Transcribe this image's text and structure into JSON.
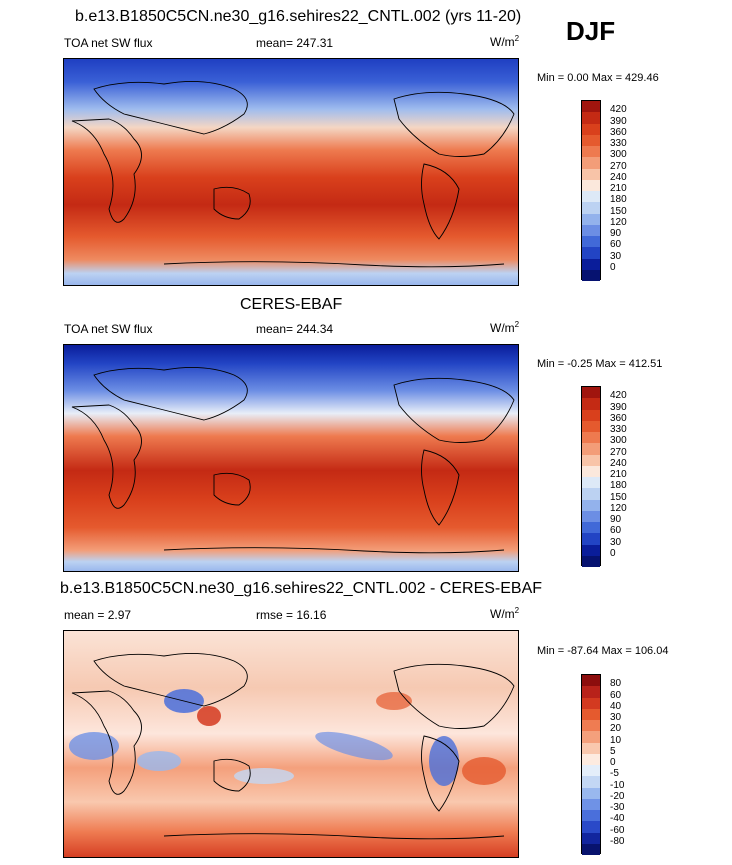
{
  "season": "DJF",
  "panels": [
    {
      "title": "b.e13.B1850C5CN.ne30_g16.sehires22_CNTL.002 (yrs 11-20)",
      "left_label": "TOA net SW flux",
      "center_label": "mean= 247.31",
      "units": "W/m",
      "units_sup": "2",
      "minmax": "Min =   0.00 Max = 429.46",
      "ticks": [
        "420",
        "390",
        "360",
        "330",
        "300",
        "270",
        "240",
        "210",
        "180",
        "150",
        "120",
        "90",
        "60",
        "30",
        "0"
      ],
      "colors": [
        "#a0150e",
        "#c42a14",
        "#d9401c",
        "#e55a2e",
        "#ee7a4f",
        "#f39d78",
        "#f8c4a8",
        "#fbe8dc",
        "#dde9f7",
        "#bcd2f2",
        "#93b2ec",
        "#6c8ee4",
        "#4169d8",
        "#2244c4",
        "#0a1d9a",
        "#061270"
      ]
    },
    {
      "title": "CERES-EBAF",
      "left_label": "TOA net SW flux",
      "center_label": "mean= 244.34",
      "units": "W/m",
      "units_sup": "2",
      "minmax": "Min =  -0.25 Max = 412.51",
      "ticks": [
        "420",
        "390",
        "360",
        "330",
        "300",
        "270",
        "240",
        "210",
        "180",
        "150",
        "120",
        "90",
        "60",
        "30",
        "0"
      ],
      "colors": [
        "#a0150e",
        "#c42a14",
        "#d9401c",
        "#e55a2e",
        "#ee7a4f",
        "#f39d78",
        "#f8c4a8",
        "#fbe8dc",
        "#dde9f7",
        "#bcd2f2",
        "#93b2ec",
        "#6c8ee4",
        "#4169d8",
        "#2244c4",
        "#0a1d9a",
        "#061270"
      ]
    },
    {
      "title": "b.e13.B1850C5CN.ne30_g16.sehires22_CNTL.002 - CERES-EBAF",
      "left_label": "mean =   2.97",
      "center_label": "rmse =  16.16",
      "units": "W/m",
      "units_sup": "2",
      "minmax": "Min = -87.64 Max = 106.04",
      "ticks": [
        "80",
        "60",
        "40",
        "30",
        "20",
        "10",
        "5",
        "0",
        "-5",
        "-10",
        "-20",
        "-30",
        "-40",
        "-60",
        "-80"
      ],
      "colors": [
        "#8c0d0d",
        "#b8221a",
        "#d33a20",
        "#e55a2e",
        "#ef7c52",
        "#f4a07c",
        "#f9c8ae",
        "#fdebe0",
        "#e4eefa",
        "#c3d7f4",
        "#99b8ee",
        "#6f92e6",
        "#4a6fdb",
        "#2a49c8",
        "#12259e",
        "#08136e"
      ]
    }
  ]
}
